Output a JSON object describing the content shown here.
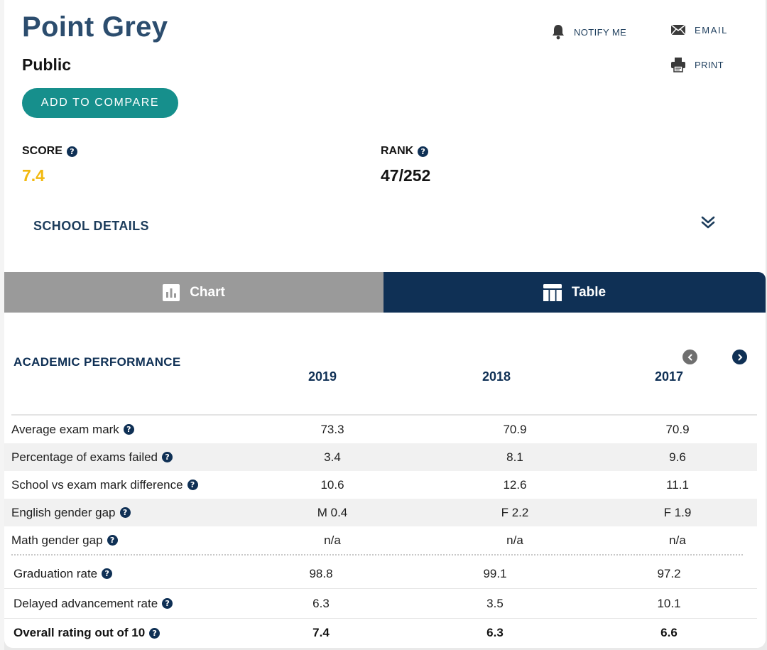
{
  "school": {
    "name": "Point Grey",
    "type": "Public",
    "compare_label": "ADD TO COMPARE"
  },
  "actions": {
    "notify": "NOTIFY ME",
    "email": "EMAIL",
    "print": "PRINT"
  },
  "stats": {
    "score_label": "SCORE",
    "score_value": "7.4",
    "rank_label": "RANK",
    "rank_value": "47/252"
  },
  "details_label": "SCHOOL DETAILS",
  "tabs": {
    "chart": "Chart",
    "table": "Table"
  },
  "table": {
    "section_title": "ACADEMIC PERFORMANCE",
    "years": [
      "2019",
      "2018",
      "2017"
    ],
    "rows": [
      {
        "label": "Average exam mark",
        "values": [
          "73.3",
          "70.9",
          "70.9"
        ]
      },
      {
        "label": "Percentage of exams failed",
        "values": [
          "3.4",
          "8.1",
          "9.6"
        ]
      },
      {
        "label": "School vs exam mark difference",
        "values": [
          "10.6",
          "12.6",
          "11.1"
        ]
      },
      {
        "label": "English gender gap",
        "values": [
          "M 0.4",
          "F 2.2",
          "F 1.9"
        ]
      },
      {
        "label": "Math gender gap",
        "values": [
          "n/a",
          "n/a",
          "n/a"
        ]
      }
    ],
    "rows2": [
      {
        "label": "Graduation rate",
        "values": [
          "98.8",
          "99.1",
          "97.2"
        ]
      },
      {
        "label": "Delayed advancement rate",
        "values": [
          "6.3",
          "3.5",
          "10.1"
        ]
      },
      {
        "label": "Overall rating out of 10",
        "values": [
          "7.4",
          "6.3",
          "6.6"
        ]
      }
    ]
  },
  "colors": {
    "navy": "#0f3055",
    "teal": "#168f8c",
    "score": "#f2b90f",
    "tab_inactive": "#9a9a9a"
  }
}
